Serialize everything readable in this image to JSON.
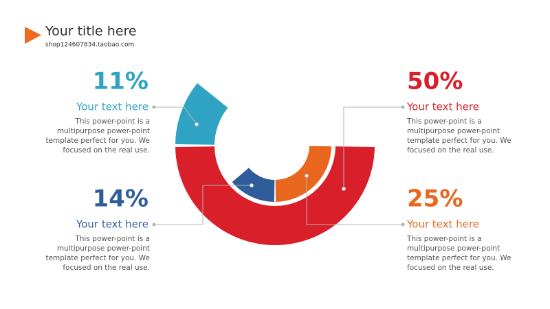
{
  "header": {
    "title": "Your title  here",
    "subtitle": "shop124607834.taobao.com"
  },
  "chart_data": {
    "type": "radial-donut",
    "categories": [
      "Your text here",
      "Your text here",
      "Your text here",
      "Your text here"
    ],
    "values": [
      50,
      11,
      25,
      14
    ],
    "value_labels": [
      "50%",
      "11%",
      "25%",
      "14%"
    ],
    "colors": [
      "#d81f2a",
      "#2ea3c3",
      "#e9661f",
      "#2f5d9c"
    ],
    "rings": [
      "outer",
      "outer",
      "inner",
      "inner"
    ],
    "descriptions": [
      [
        "This power-point is a",
        "multipurpose power-point",
        "template perfect for you. We",
        "focused on the real use."
      ],
      [
        "This power-point is a",
        "multipurpose power-point",
        "template perfect for you. We",
        "focused on the real use."
      ],
      [
        "This power-point is a",
        "multipurpose power-point",
        "template perfect for you. We",
        "focused on the real use."
      ],
      [
        "This power-point is a",
        "multipurpose power-point",
        "template perfect for you. We",
        "focused on the real use."
      ]
    ]
  }
}
